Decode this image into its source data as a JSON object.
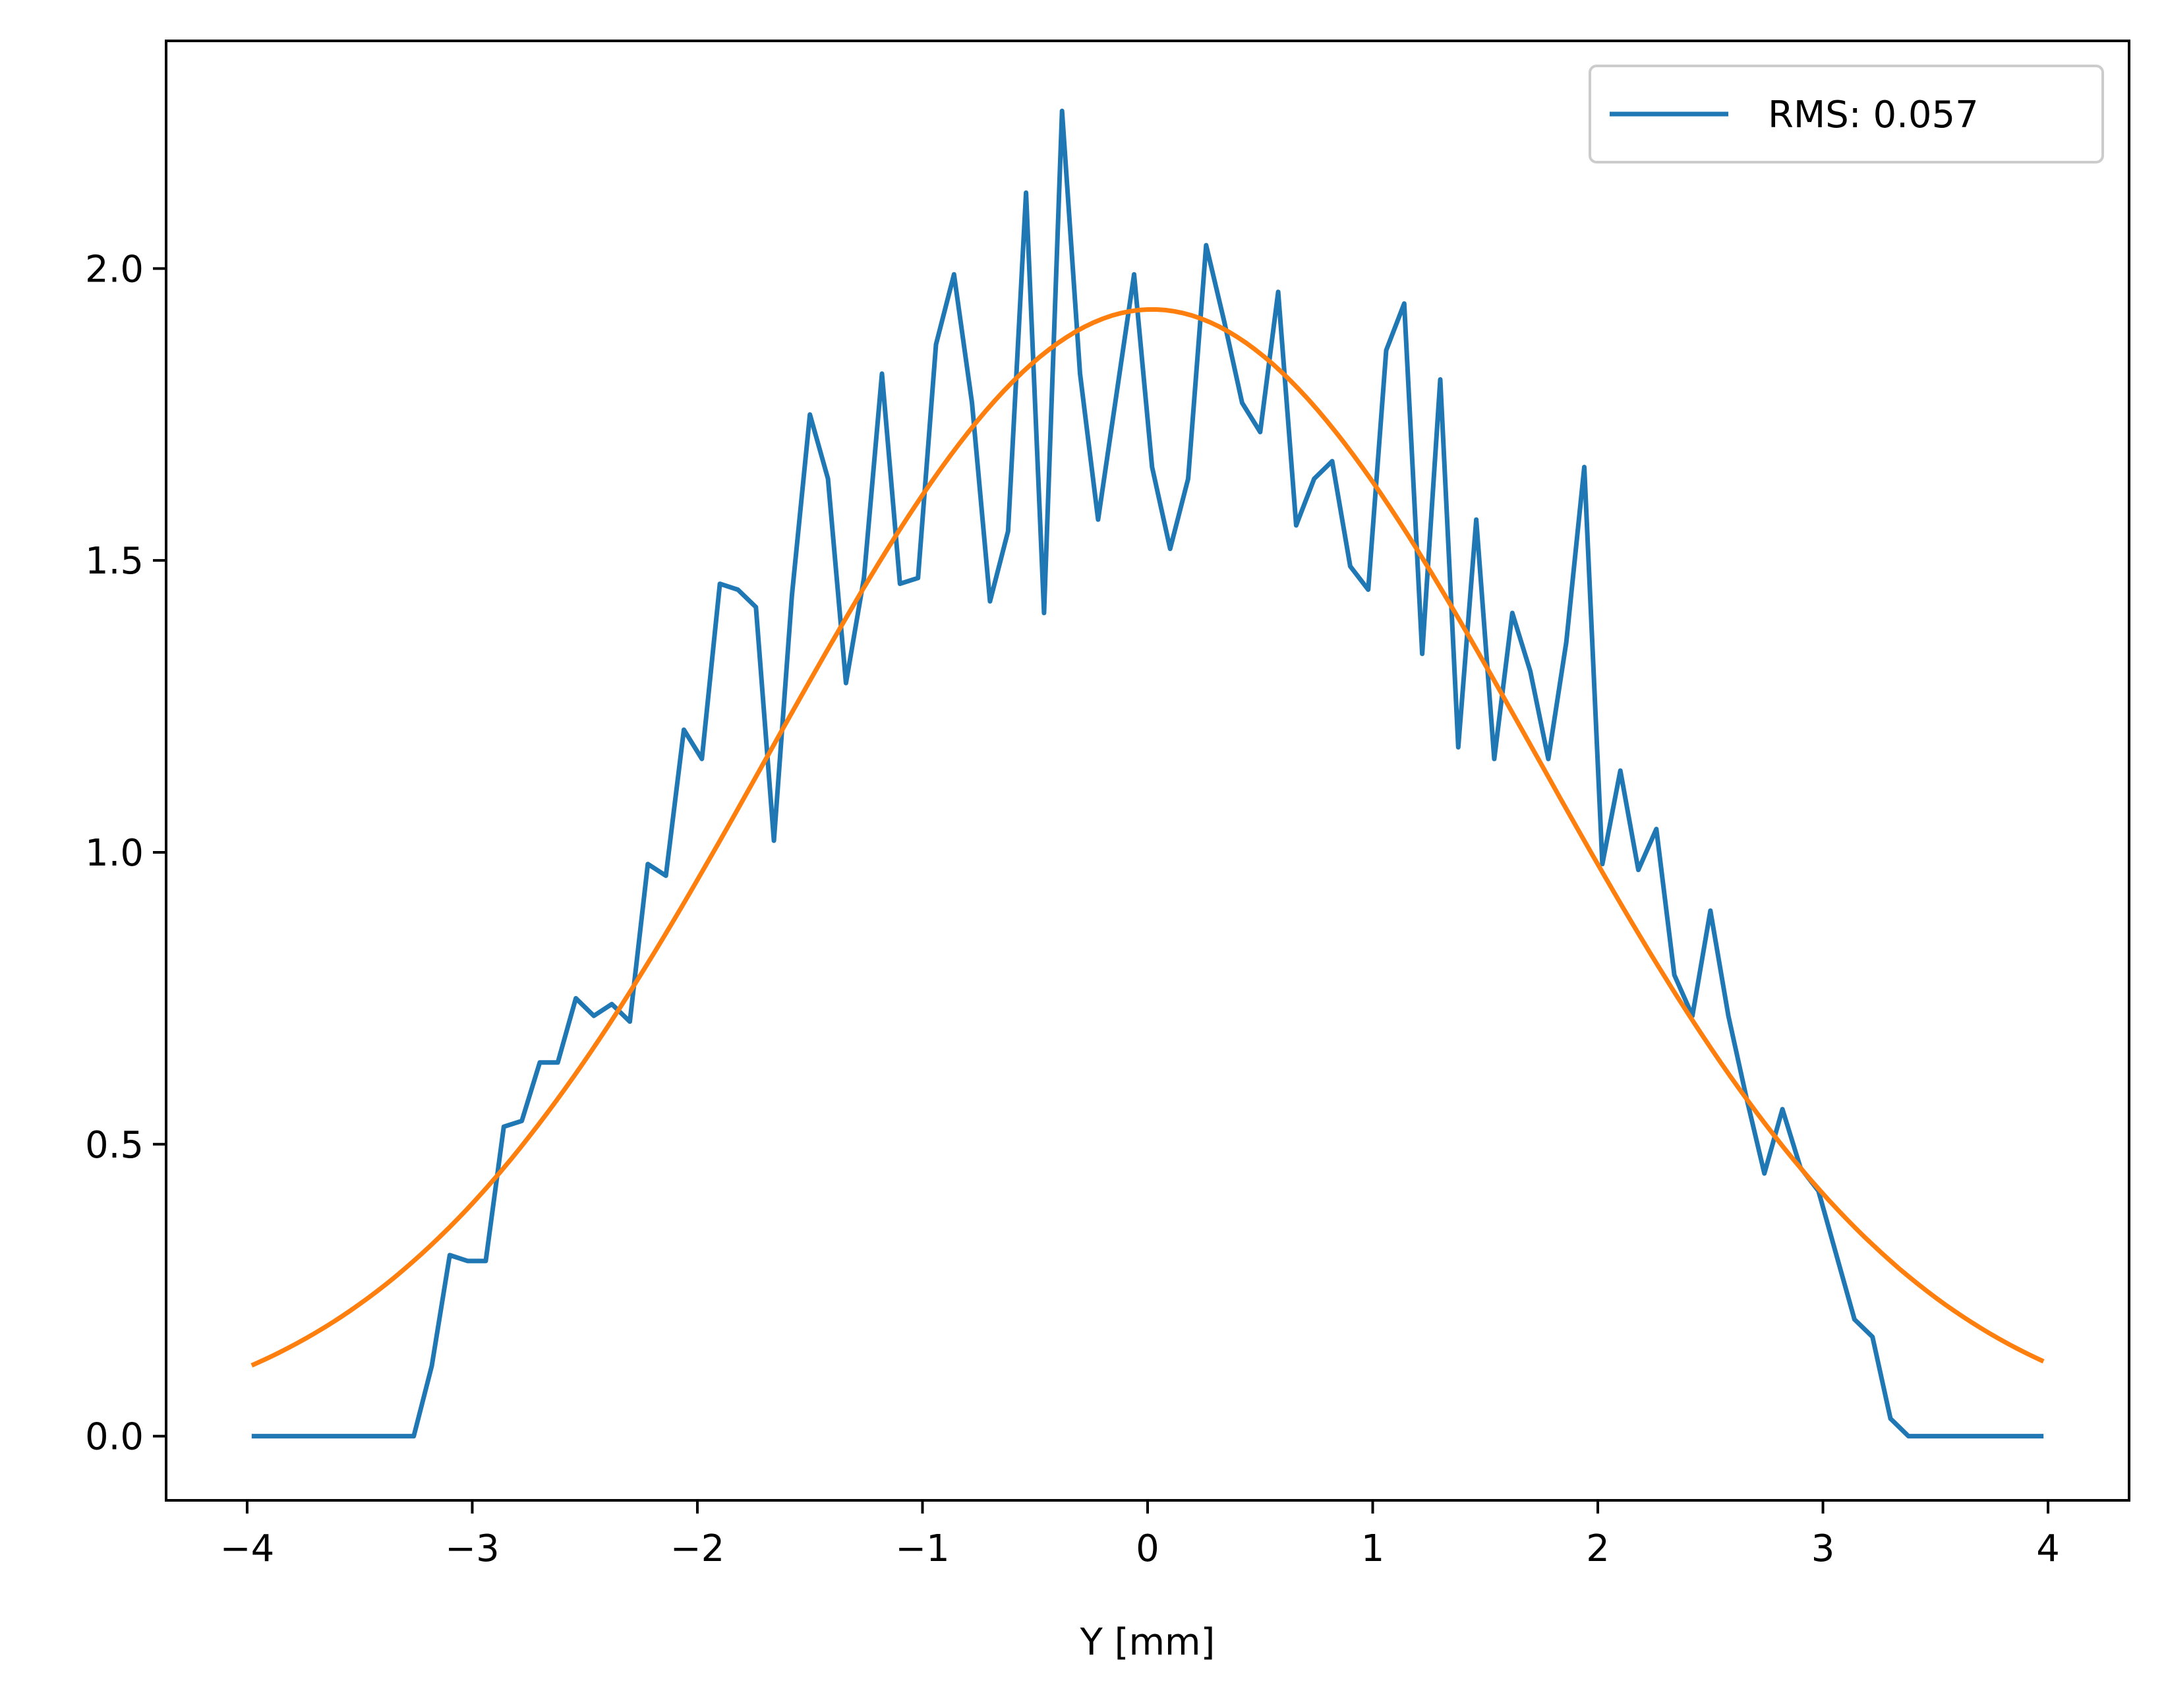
{
  "chart_data": {
    "type": "line",
    "title": "",
    "xlabel": "Y [mm]",
    "ylabel": "",
    "xlim": [
      -4.36,
      4.36
    ],
    "ylim": [
      -0.11,
      2.39
    ],
    "xticks": [
      -4,
      -3,
      -2,
      -1,
      0,
      1,
      2,
      3,
      4
    ],
    "xtick_labels": [
      "−4",
      "−3",
      "−2",
      "−1",
      "0",
      "1",
      "2",
      "3",
      "4"
    ],
    "yticks": [
      0.0,
      0.5,
      1.0,
      1.5,
      2.0
    ],
    "ytick_labels": [
      "0.0",
      "0.5",
      "1.0",
      "1.5",
      "2.0"
    ],
    "grid": false,
    "legend_position": "top-right",
    "series": [
      {
        "name": "RMS: 0.057",
        "color": "#1f77b4",
        "x": [
          -3.98,
          -3.9,
          -3.82,
          -3.74,
          -3.66,
          -3.58,
          -3.5,
          -3.42,
          -3.34,
          -3.26,
          -3.18,
          -3.1,
          -3.02,
          -2.94,
          -2.86,
          -2.78,
          -2.7,
          -2.62,
          -2.54,
          -2.46,
          -2.38,
          -2.3,
          -2.22,
          -2.14,
          -2.06,
          -1.98,
          -1.9,
          -1.82,
          -1.74,
          -1.66,
          -1.58,
          -1.5,
          -1.42,
          -1.34,
          -1.26,
          -1.18,
          -1.1,
          -1.02,
          -0.94,
          -0.86,
          -0.78,
          -0.7,
          -0.62,
          -0.54,
          -0.46,
          -0.38,
          -0.3,
          -0.22,
          -0.14,
          -0.06,
          0.02,
          0.1,
          0.18,
          0.26,
          0.34,
          0.42,
          0.5,
          0.58,
          0.66,
          0.74,
          0.82,
          0.9,
          0.98,
          1.06,
          1.14,
          1.22,
          1.3,
          1.38,
          1.46,
          1.54,
          1.62,
          1.7,
          1.78,
          1.86,
          1.94,
          2.02,
          2.1,
          2.18,
          2.26,
          2.34,
          2.42,
          2.5,
          2.58,
          2.66,
          2.74,
          2.82,
          2.9,
          2.98,
          3.06,
          3.14,
          3.22,
          3.3,
          3.38,
          3.46,
          3.54,
          3.62,
          3.7,
          3.78,
          3.86,
          3.94,
          3.98
        ],
        "y": [
          0.0,
          0.0,
          0.0,
          0.0,
          0.0,
          0.0,
          0.0,
          0.0,
          0.0,
          0.0,
          0.12,
          0.31,
          0.3,
          0.3,
          0.53,
          0.54,
          0.64,
          0.64,
          0.75,
          0.72,
          0.74,
          0.71,
          0.98,
          0.96,
          1.21,
          1.16,
          1.46,
          1.45,
          1.42,
          1.02,
          1.44,
          1.75,
          1.64,
          1.29,
          1.47,
          1.82,
          1.46,
          1.47,
          1.87,
          1.99,
          1.77,
          1.43,
          1.55,
          2.13,
          1.41,
          2.27,
          1.82,
          1.57,
          1.78,
          1.99,
          1.66,
          1.52,
          1.64,
          2.04,
          1.91,
          1.77,
          1.72,
          1.96,
          1.56,
          1.64,
          1.67,
          1.49,
          1.45,
          1.86,
          1.94,
          1.34,
          1.81,
          1.18,
          1.57,
          1.16,
          1.41,
          1.31,
          1.16,
          1.36,
          1.66,
          0.98,
          1.14,
          0.97,
          1.04,
          0.79,
          0.72,
          0.9,
          0.72,
          0.58,
          0.45,
          0.56,
          0.46,
          0.42,
          0.31,
          0.2,
          0.17,
          0.03,
          0.0,
          0.0,
          0.0,
          0.0,
          0.0,
          0.0,
          0.0,
          0.0,
          0.0
        ]
      },
      {
        "color": "#ff7f0e",
        "fit": "gaussian",
        "amplitude": 1.93,
        "mean": 0.02,
        "sigma": 1.7,
        "x_range": [
          -3.98,
          3.98
        ]
      }
    ]
  }
}
